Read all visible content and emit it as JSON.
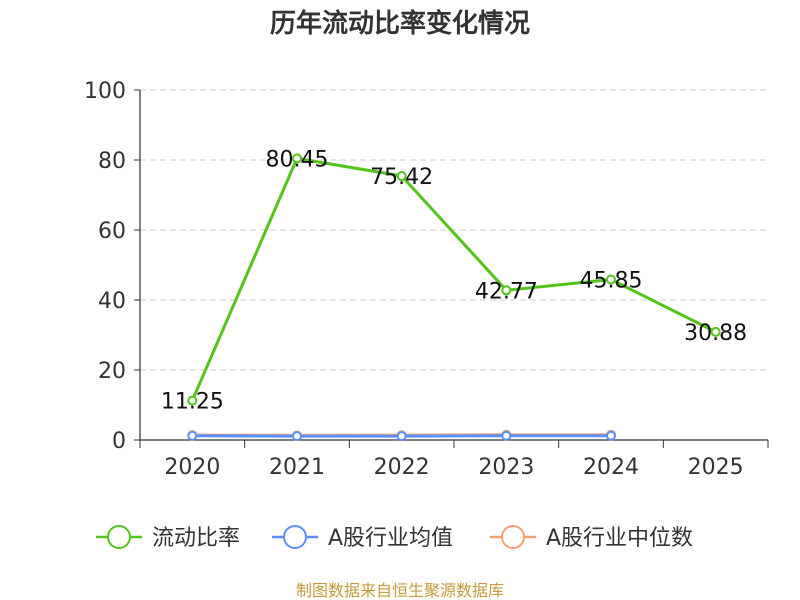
{
  "chart_data": {
    "type": "line",
    "title": "历年流动比率变化情况",
    "xlabel": "",
    "ylabel": "",
    "categories": [
      "2020",
      "2021",
      "2022",
      "2023",
      "2024",
      "2025"
    ],
    "ylim": [
      0,
      100
    ],
    "yticks": [
      0,
      20,
      40,
      60,
      80,
      100
    ],
    "grid": true,
    "legend_position": "bottom",
    "series": [
      {
        "name": "流动比率",
        "color": "#52c41a",
        "values": [
          11.25,
          80.45,
          75.42,
          42.77,
          45.85,
          30.88
        ],
        "show_labels": true
      },
      {
        "name": "A股行业均值",
        "color": "#5b8ff9",
        "values": [
          1.2,
          1.1,
          1.1,
          1.2,
          1.2,
          null
        ],
        "show_labels": false
      },
      {
        "name": "A股行业中位数",
        "color": "#f6a070",
        "values": [
          1.4,
          1.3,
          1.4,
          1.5,
          1.5,
          null
        ],
        "show_labels": false
      }
    ]
  },
  "source": "制图数据来自恒生聚源数据库"
}
